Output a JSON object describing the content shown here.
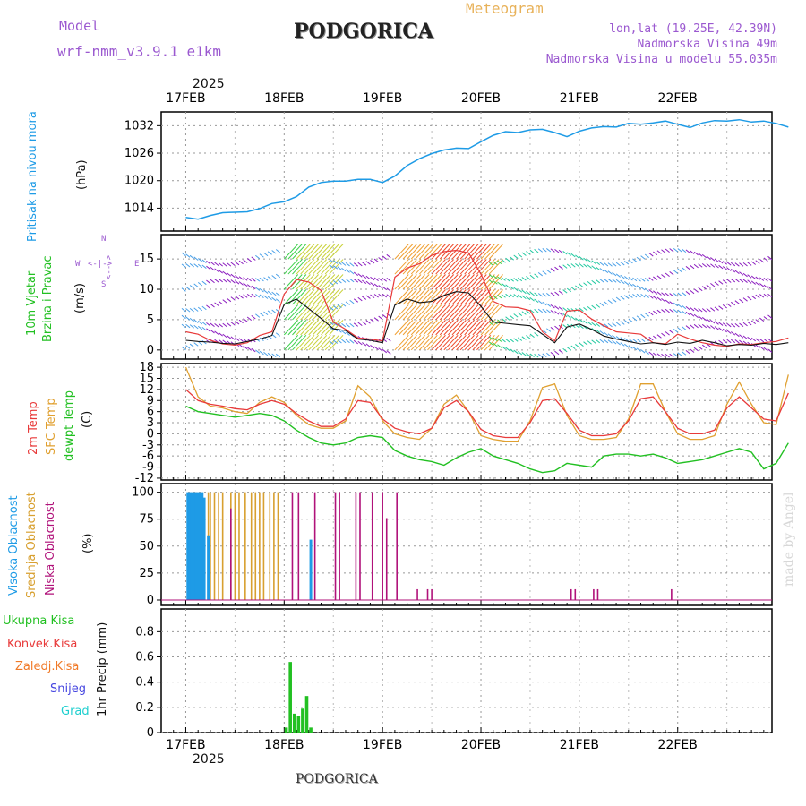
{
  "header": {
    "model_label": "Model",
    "model_name": "wrf-nmm_v3.9.1 e1km",
    "title": "PODGORICA",
    "subtitle": "Meteogram",
    "lonlat": "lon,lat (19.25E, 42.39N)",
    "elevation": "Nadmorska Visina 49m",
    "model_elevation": "Nadmorska Visina u modelu 55.035m",
    "footer": "PODGORICA",
    "credit": "made by Angel"
  },
  "colors": {
    "pressure": "#1e9be6",
    "temp2m": "#e83a3a",
    "sfc": "#e0a030",
    "dewpt": "#22c022",
    "high_cloud": "#1e9be6",
    "mid_cloud": "#d8a030",
    "low_cloud": "#b0127a",
    "precip_total": "#22c022",
    "wind_mean": "#111111",
    "gust": "#e83a3a"
  },
  "chart_data": [
    {
      "type": "line",
      "panel": "pressure",
      "ylabel_name": "Pritisak na nivou mora",
      "ylabel_unit": "(hPa)",
      "yticks": [
        1014,
        1020,
        1026,
        1032
      ],
      "ylim": [
        1009,
        1035
      ],
      "year": "2025",
      "x_dates": [
        "17FEB",
        "18FEB",
        "19FEB",
        "20FEB",
        "21FEB",
        "22FEB"
      ],
      "x_hours": [
        0,
        3,
        6,
        9,
        12,
        15,
        18,
        21,
        24,
        27,
        30,
        33,
        36,
        39,
        42,
        45,
        48,
        51,
        54,
        57,
        60,
        63,
        66,
        69,
        72,
        75,
        78,
        81,
        84,
        87,
        90,
        93,
        96,
        99,
        102,
        105,
        108,
        111,
        114,
        117,
        120,
        123,
        126,
        129,
        132,
        135,
        138,
        141,
        144,
        147
      ],
      "series": [
        {
          "values": [
            1012.0,
            1011.6,
            1012.4,
            1013.0,
            1013.1,
            1013.2,
            1013.9,
            1015.0,
            1015.4,
            1016.5,
            1018.6,
            1019.6,
            1019.9,
            1019.9,
            1020.3,
            1020.3,
            1019.6,
            1021.0,
            1023.3,
            1024.8,
            1025.9,
            1026.7,
            1027.1,
            1027.0,
            1028.5,
            1029.9,
            1030.7,
            1030.5,
            1031.1,
            1031.2,
            1030.5,
            1029.6,
            1030.8,
            1031.5,
            1031.8,
            1031.7,
            1032.5,
            1032.3,
            1032.6,
            1033.0,
            1032.3,
            1031.6,
            1032.6,
            1033.1,
            1033.0,
            1033.3,
            1032.8,
            1033.0,
            1032.5,
            1031.7
          ]
        }
      ]
    },
    {
      "type": "line",
      "panel": "wind",
      "ylabel_name": "10m Vjetar",
      "ylabel_name2": "Brzina i Pravac",
      "ylabel_unit": "(m/s)",
      "compass": {
        "n": "N",
        "w": "W",
        "e": "E",
        "s": "S",
        "arrow_v": "<--->",
        "arrow_h": "<-|->"
      },
      "yticks": [
        0,
        5,
        10,
        15
      ],
      "ylim": [
        -1.5,
        19
      ],
      "x_hours": [
        0,
        3,
        6,
        9,
        12,
        15,
        18,
        21,
        24,
        27,
        30,
        33,
        36,
        39,
        42,
        45,
        48,
        51,
        54,
        57,
        60,
        63,
        66,
        69,
        72,
        75,
        78,
        81,
        84,
        87,
        90,
        93,
        96,
        99,
        102,
        105,
        108,
        111,
        114,
        117,
        120,
        123,
        126,
        129,
        132,
        135,
        138,
        141,
        144,
        147
      ],
      "series": [
        {
          "name": "mean",
          "values": [
            1.6,
            1.4,
            1.3,
            1.1,
            1.0,
            1.4,
            1.8,
            2.4,
            7.5,
            8.4,
            6.8,
            5.2,
            3.5,
            3.2,
            1.8,
            1.6,
            1.2,
            7.4,
            8.4,
            7.8,
            8.0,
            9.0,
            9.6,
            9.4,
            7.2,
            4.6,
            4.4,
            4.2,
            4.0,
            2.6,
            1.2,
            3.8,
            4.3,
            3.4,
            2.3,
            1.8,
            1.4,
            1.0,
            1.2,
            0.9,
            1.3,
            1.1,
            1.6,
            1.2,
            0.7,
            0.9,
            0.8,
            1.1,
            0.9,
            1.2
          ]
        },
        {
          "name": "gust",
          "values": [
            3.0,
            2.6,
            1.6,
            1.0,
            0.8,
            1.2,
            2.4,
            3.0,
            9.2,
            11.6,
            11.2,
            9.8,
            4.6,
            3.4,
            2.0,
            1.8,
            1.5,
            12.0,
            13.5,
            14.2,
            15.6,
            16.2,
            16.4,
            16.0,
            12.5,
            8.0,
            7.1,
            7.0,
            6.5,
            3.0,
            1.5,
            6.4,
            6.6,
            5.1,
            4.0,
            3.0,
            2.8,
            2.6,
            1.2,
            1.0,
            2.6,
            1.8,
            1.2,
            0.8,
            0.6,
            1.0,
            0.9,
            1.2,
            1.4,
            2.0
          ]
        }
      ]
    },
    {
      "type": "line",
      "panel": "temperature",
      "ylabel_2m": "2m Temp",
      "ylabel_sfc": "SFC Temp",
      "ylabel_dewpt": "dewpt Temp",
      "ylabel_unit": "(C)",
      "yticks": [
        -12,
        -9,
        -6,
        -3,
        0,
        3,
        6,
        9,
        12,
        15,
        18
      ],
      "ylim": [
        -12.5,
        19
      ],
      "x_hours": [
        0,
        3,
        6,
        9,
        12,
        15,
        18,
        21,
        24,
        27,
        30,
        33,
        36,
        39,
        42,
        45,
        48,
        51,
        54,
        57,
        60,
        63,
        66,
        69,
        72,
        75,
        78,
        81,
        84,
        87,
        90,
        93,
        96,
        99,
        102,
        105,
        108,
        111,
        114,
        117,
        120,
        123,
        126,
        129,
        132,
        135,
        138,
        141,
        144,
        147
      ],
      "series": [
        {
          "name": "2m",
          "values": [
            12.0,
            9.0,
            8.0,
            7.5,
            6.8,
            6.5,
            8.0,
            9.0,
            8.0,
            5.5,
            3.5,
            2.0,
            2.0,
            4.0,
            9.0,
            8.5,
            4.0,
            1.5,
            0.5,
            0.0,
            1.5,
            7.0,
            9.0,
            6.0,
            1.2,
            -0.5,
            -1.0,
            -1.0,
            3.0,
            9.0,
            9.5,
            5.5,
            1.0,
            -0.5,
            -0.5,
            0.0,
            3.5,
            9.5,
            10.0,
            6.0,
            1.5,
            0.0,
            0.0,
            1.0,
            7.0,
            10.0,
            7.0,
            4.0,
            3.5,
            11.0
          ]
        },
        {
          "name": "sfc",
          "values": [
            18.0,
            10.0,
            7.5,
            7.0,
            6.0,
            5.5,
            8.5,
            10.0,
            8.5,
            5.0,
            2.5,
            1.5,
            1.5,
            3.5,
            13.0,
            10.0,
            3.5,
            0.0,
            -1.0,
            -1.5,
            1.5,
            8.0,
            10.5,
            6.0,
            -0.5,
            -1.5,
            -2.0,
            -2.0,
            3.5,
            12.5,
            13.5,
            5.0,
            -0.5,
            -1.5,
            -1.5,
            -1.0,
            4.0,
            13.5,
            13.5,
            6.0,
            0.0,
            -1.5,
            -1.5,
            -0.5,
            8.0,
            14.0,
            8.0,
            3.0,
            2.5,
            16.0
          ]
        },
        {
          "name": "dewpt",
          "values": [
            7.5,
            6.0,
            5.5,
            5.0,
            4.5,
            5.0,
            5.5,
            5.0,
            3.5,
            1.0,
            -1.0,
            -2.5,
            -3.0,
            -2.5,
            -1.0,
            -0.5,
            -1.0,
            -4.5,
            -6.0,
            -7.0,
            -7.5,
            -8.5,
            -6.5,
            -5.0,
            -4.0,
            -6.0,
            -7.0,
            -8.0,
            -9.5,
            -10.5,
            -10.0,
            -8.0,
            -8.5,
            -9.0,
            -6.0,
            -5.5,
            -5.5,
            -6.0,
            -5.5,
            -6.5,
            -8.0,
            -7.5,
            -7.0,
            -6.0,
            -5.0,
            -4.0,
            -5.0,
            -9.5,
            -8.0,
            -2.5
          ]
        }
      ]
    },
    {
      "type": "bar",
      "panel": "clouds",
      "ylabel_high": "Visoka Oblacnost",
      "ylabel_mid": "Srednja Oblacnost",
      "ylabel_low": "Niska Oblacnost",
      "ylabel_unit": "(%)",
      "yticks": [
        0,
        25,
        50,
        75,
        100
      ],
      "ylim": [
        -5,
        108
      ],
      "high": [
        [
          0.5,
          100
        ],
        [
          1.0,
          100
        ],
        [
          1.5,
          100
        ],
        [
          2.0,
          100
        ],
        [
          2.5,
          100
        ],
        [
          3.0,
          100
        ],
        [
          3.5,
          100
        ],
        [
          4.0,
          100
        ],
        [
          4.5,
          95
        ],
        [
          5.5,
          60
        ],
        [
          30.5,
          56
        ]
      ],
      "mid": [
        [
          2.5,
          100
        ],
        [
          5.5,
          100
        ],
        [
          6.0,
          100
        ],
        [
          7.0,
          100
        ],
        [
          8.0,
          100
        ],
        [
          9.0,
          100
        ],
        [
          11.0,
          100
        ],
        [
          12.0,
          100
        ],
        [
          13.0,
          100
        ],
        [
          14.5,
          100
        ],
        [
          16.0,
          100
        ],
        [
          17.0,
          100
        ],
        [
          18.0,
          100
        ],
        [
          19.0,
          100
        ],
        [
          20.5,
          100
        ],
        [
          21.5,
          100
        ],
        [
          22.5,
          100
        ]
      ],
      "low": [
        [
          11.0,
          85
        ],
        [
          26.0,
          100
        ],
        [
          27.5,
          100
        ],
        [
          31.5,
          100
        ],
        [
          36.5,
          100
        ],
        [
          37.5,
          100
        ],
        [
          41.5,
          100
        ],
        [
          42.5,
          100
        ],
        [
          45.5,
          100
        ],
        [
          48.0,
          100
        ],
        [
          49.0,
          76
        ],
        [
          51.5,
          100
        ],
        [
          56.5,
          10
        ],
        [
          59.0,
          10
        ],
        [
          60.0,
          10
        ],
        [
          94.0,
          10
        ],
        [
          95.0,
          10
        ],
        [
          99.5,
          10
        ],
        [
          100.5,
          10
        ],
        [
          118.5,
          10
        ]
      ]
    },
    {
      "type": "bar",
      "panel": "precipitation",
      "legend": [
        "Ukupna Kisa",
        "Konvek.Kisa",
        "Zaledj.Kisa",
        "Snijeg",
        "Grad"
      ],
      "legend_colors": [
        "#22c022",
        "#e83a3a",
        "#f07a28",
        "#4646e0",
        "#1fcfcf"
      ],
      "ylabel": "1hr Precip (mm)",
      "yticks": [
        0,
        0.2,
        0.4,
        0.6,
        0.8
      ],
      "ylim": [
        0,
        0.98
      ],
      "values": [
        [
          24.5,
          0.04
        ],
        [
          25.5,
          0.56
        ],
        [
          26.5,
          0.15
        ],
        [
          27.5,
          0.13
        ],
        [
          28.5,
          0.19
        ],
        [
          29.5,
          0.29
        ],
        [
          30.5,
          0.04
        ]
      ]
    }
  ]
}
